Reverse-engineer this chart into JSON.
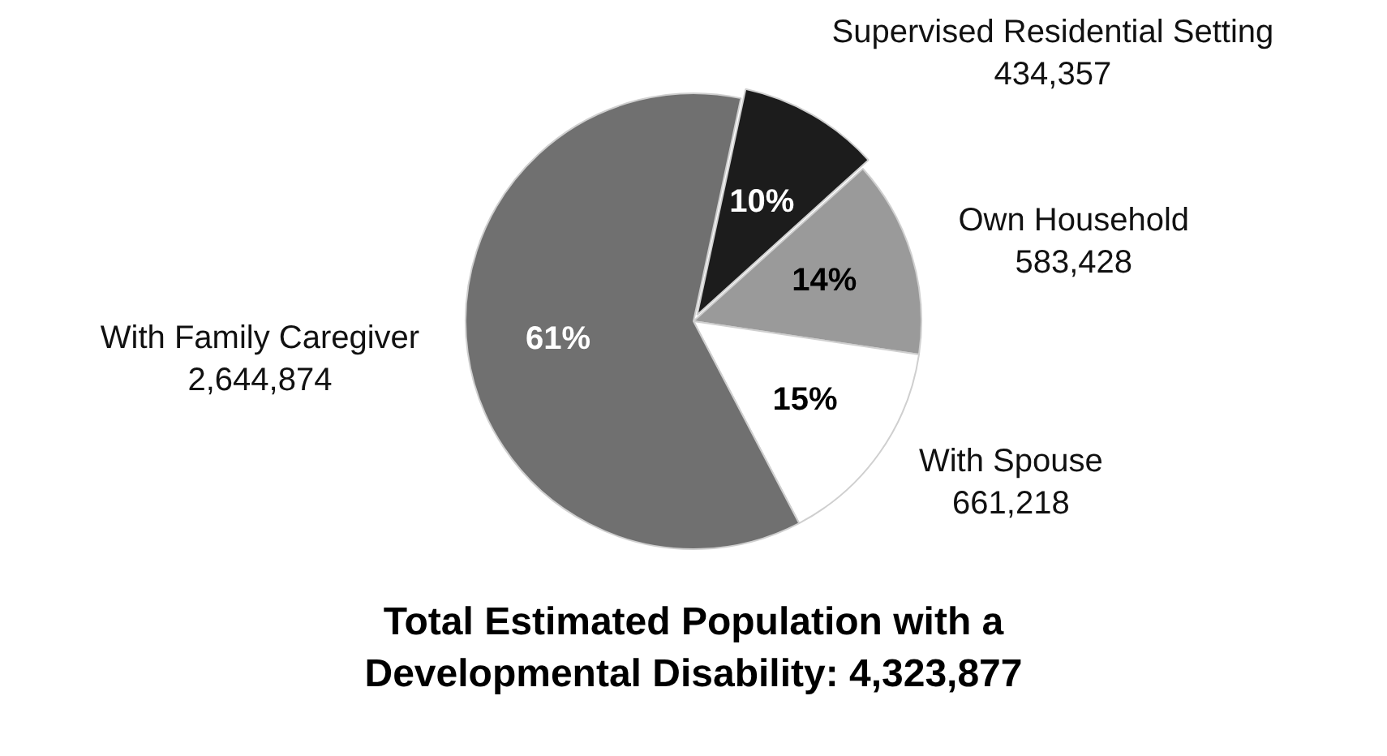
{
  "chart_data": {
    "type": "pie",
    "title": "Total Estimated Population with a Developmental Disability: 4,323,877",
    "categories": [
      "Supervised Residential Setting",
      "Own Household",
      "With Spouse",
      "With Family Caregiver"
    ],
    "values": [
      10,
      14,
      15,
      61
    ],
    "colors": [
      "#1c1c1c",
      "#9a9a9a",
      "#ffffff",
      "#707070"
    ],
    "value_labels": [
      "10%",
      "14%",
      "15%",
      "61%"
    ],
    "annotations": [
      {
        "text": "434,357",
        "x": "Supervised Residential Setting"
      },
      {
        "text": "583,428",
        "x": "Own Household"
      },
      {
        "text": "661,218",
        "x": "With Spouse"
      },
      {
        "text": "2,644,874",
        "x": "With Family Caregiver"
      }
    ],
    "legend": false
  }
}
